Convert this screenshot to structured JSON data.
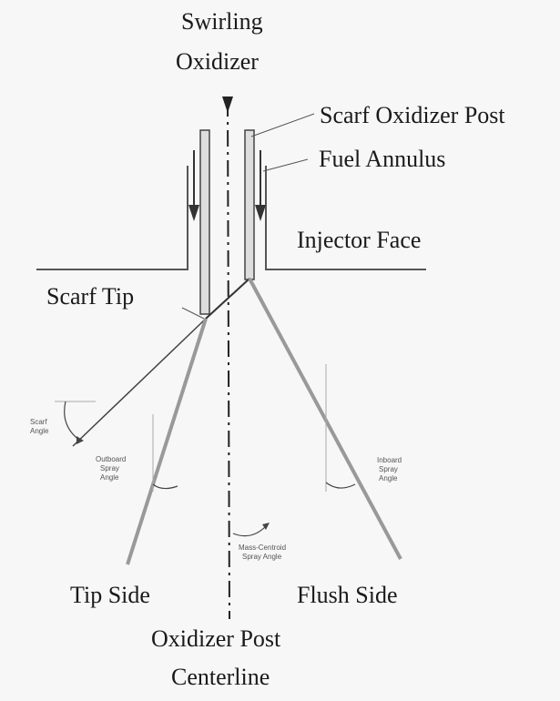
{
  "labels": {
    "swirling_1": "Swirling",
    "swirling_2": "Oxidizer",
    "scarf_post": "Scarf Oxidizer Post",
    "fuel_annulus": "Fuel Annulus",
    "injector_face": "Injector Face",
    "scarf_tip": "Scarf Tip",
    "tip_side": "Tip Side",
    "flush_side": "Flush Side",
    "centerline_1": "Oxidizer Post",
    "centerline_2": "Centerline"
  },
  "small_labels": {
    "scarf_angle_1": "Scarf",
    "scarf_angle_2": "Angle",
    "outboard_1": "Outboard",
    "outboard_2": "Spray",
    "outboard_3": "Angle",
    "inboard_1": "Inboard",
    "inboard_2": "Spray",
    "inboard_3": "Angle",
    "mass_1": "Mass-Centroid",
    "mass_2": "Spray Angle"
  }
}
